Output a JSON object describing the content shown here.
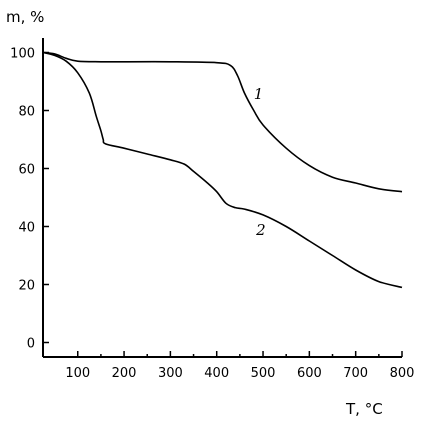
{
  "chart_data": {
    "type": "line",
    "title": "",
    "xlabel": "T, °C",
    "ylabel": "m, %",
    "xlim": [
      25,
      800
    ],
    "ylim": [
      -5,
      105
    ],
    "xticks": [
      100,
      200,
      300,
      400,
      500,
      600,
      700,
      800
    ],
    "yticks": [
      0,
      20,
      40,
      60,
      80,
      100
    ],
    "grid": false,
    "legend": "none",
    "series": [
      {
        "label": "1",
        "x": [
          25,
          50,
          75,
          100,
          150,
          200,
          300,
          400,
          430,
          445,
          460,
          480,
          500,
          550,
          600,
          650,
          700,
          750,
          800
        ],
        "y": [
          100,
          99.5,
          98,
          97,
          96.8,
          96.8,
          96.8,
          96.5,
          95.5,
          92,
          86,
          80,
          75,
          67,
          61,
          57,
          55,
          53,
          52
        ]
      },
      {
        "label": "2",
        "x": [
          25,
          50,
          75,
          100,
          125,
          140,
          150,
          155,
          160,
          200,
          250,
          300,
          330,
          350,
          380,
          400,
          420,
          440,
          460,
          500,
          550,
          600,
          650,
          700,
          750,
          800
        ],
        "y": [
          100,
          99,
          97,
          93,
          86,
          78,
          73,
          70,
          68.5,
          67,
          65,
          63,
          61.5,
          59,
          55,
          52,
          48,
          46.5,
          46,
          44,
          40,
          35,
          30,
          25,
          21,
          19
        ]
      }
    ]
  }
}
